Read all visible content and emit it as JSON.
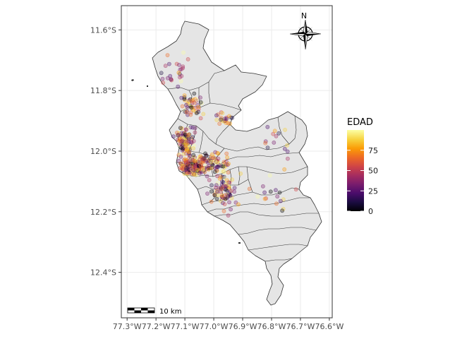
{
  "chart_data": {
    "type": "scatter",
    "subtype": "choropleth-map-with-points",
    "x_axis": {
      "ticks": [
        -77.3,
        -77.2,
        -77.1,
        -77.0,
        -76.9,
        -76.8,
        -76.7,
        -76.6
      ],
      "tick_labels": [
        "77.3°W",
        "77.2°W",
        "77.1°W",
        "77.0°W",
        "76.9°W",
        "76.8°W",
        "76.7°W",
        "76.6°W"
      ],
      "range": [
        -77.32,
        -76.59
      ]
    },
    "y_axis": {
      "ticks": [
        -11.6,
        -11.8,
        -12.0,
        -12.2,
        -12.4
      ],
      "tick_labels": [
        "11.6°S",
        "11.8°S",
        "12.0°S",
        "12.2°S",
        "12.4°S"
      ],
      "range": [
        -12.55,
        -11.52
      ]
    },
    "grid": true,
    "legend": {
      "title": "EDAD",
      "placement": "right",
      "range": [
        0,
        100
      ],
      "ticks": [
        0,
        25,
        50,
        75
      ],
      "tick_labels": [
        "0",
        "25",
        "50",
        "75"
      ]
    },
    "scale_bar": {
      "label": "10 km"
    },
    "north_arrow": {
      "label": "N"
    },
    "colors": {
      "panel_border": "#333333",
      "grid": "#ebebeb",
      "region_fill": "#e5e5e5",
      "region_stroke": "#333333",
      "palette_inferno": [
        "#000004",
        "#1b0c41",
        "#4a0c6b",
        "#781c6d",
        "#a52c60",
        "#cf4446",
        "#ed6925",
        "#fb9b06",
        "#f7d13d",
        "#fcffa4"
      ]
    },
    "point_summary": "several hundred semi-transparent points, densest along the western coast around 12.0°S–12.1°S"
  }
}
